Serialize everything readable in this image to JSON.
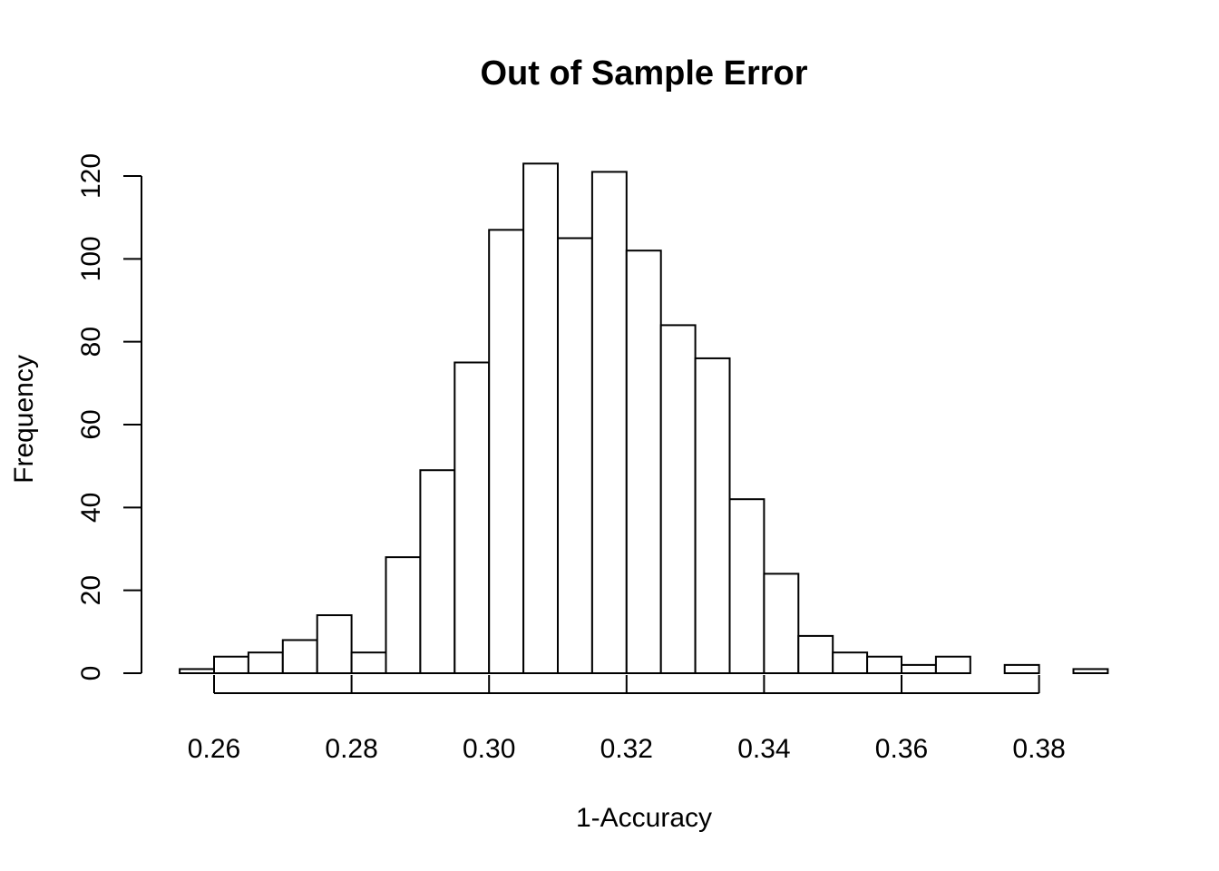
{
  "chart_data": {
    "type": "bar",
    "title": "Out of Sample Error",
    "xlabel": "1-Accuracy",
    "ylabel": "Frequency",
    "bin_width": 0.005,
    "bins": [
      {
        "x0": 0.255,
        "x1": 0.26,
        "count": 1
      },
      {
        "x0": 0.26,
        "x1": 0.265,
        "count": 4
      },
      {
        "x0": 0.265,
        "x1": 0.27,
        "count": 5
      },
      {
        "x0": 0.27,
        "x1": 0.275,
        "count": 8
      },
      {
        "x0": 0.275,
        "x1": 0.28,
        "count": 14
      },
      {
        "x0": 0.28,
        "x1": 0.285,
        "count": 5
      },
      {
        "x0": 0.285,
        "x1": 0.29,
        "count": 28
      },
      {
        "x0": 0.29,
        "x1": 0.295,
        "count": 49
      },
      {
        "x0": 0.295,
        "x1": 0.3,
        "count": 75
      },
      {
        "x0": 0.3,
        "x1": 0.305,
        "count": 107
      },
      {
        "x0": 0.305,
        "x1": 0.31,
        "count": 123
      },
      {
        "x0": 0.31,
        "x1": 0.315,
        "count": 105
      },
      {
        "x0": 0.315,
        "x1": 0.32,
        "count": 121
      },
      {
        "x0": 0.32,
        "x1": 0.325,
        "count": 102
      },
      {
        "x0": 0.325,
        "x1": 0.33,
        "count": 84
      },
      {
        "x0": 0.33,
        "x1": 0.335,
        "count": 76
      },
      {
        "x0": 0.335,
        "x1": 0.34,
        "count": 42
      },
      {
        "x0": 0.34,
        "x1": 0.345,
        "count": 24
      },
      {
        "x0": 0.345,
        "x1": 0.35,
        "count": 9
      },
      {
        "x0": 0.35,
        "x1": 0.355,
        "count": 5
      },
      {
        "x0": 0.355,
        "x1": 0.36,
        "count": 4
      },
      {
        "x0": 0.36,
        "x1": 0.365,
        "count": 2
      },
      {
        "x0": 0.365,
        "x1": 0.37,
        "count": 4
      },
      {
        "x0": 0.37,
        "x1": 0.375,
        "count": 0
      },
      {
        "x0": 0.375,
        "x1": 0.38,
        "count": 2
      },
      {
        "x0": 0.38,
        "x1": 0.385,
        "count": 0
      },
      {
        "x0": 0.385,
        "x1": 0.39,
        "count": 1
      }
    ],
    "xlim": [
      0.255,
      0.39
    ],
    "ylim": [
      0,
      123
    ],
    "x_ticks": [
      0.26,
      0.28,
      0.3,
      0.32,
      0.34,
      0.36,
      0.38
    ],
    "x_tick_labels": [
      "0.26",
      "0.28",
      "0.30",
      "0.32",
      "0.34",
      "0.36",
      "0.38"
    ],
    "y_ticks": [
      0,
      20,
      40,
      60,
      80,
      100,
      120
    ],
    "y_tick_labels": [
      "0",
      "20",
      "40",
      "60",
      "80",
      "100",
      "120"
    ],
    "grid": false,
    "bar_fill": "#ffffff",
    "bar_stroke": "#000000"
  }
}
